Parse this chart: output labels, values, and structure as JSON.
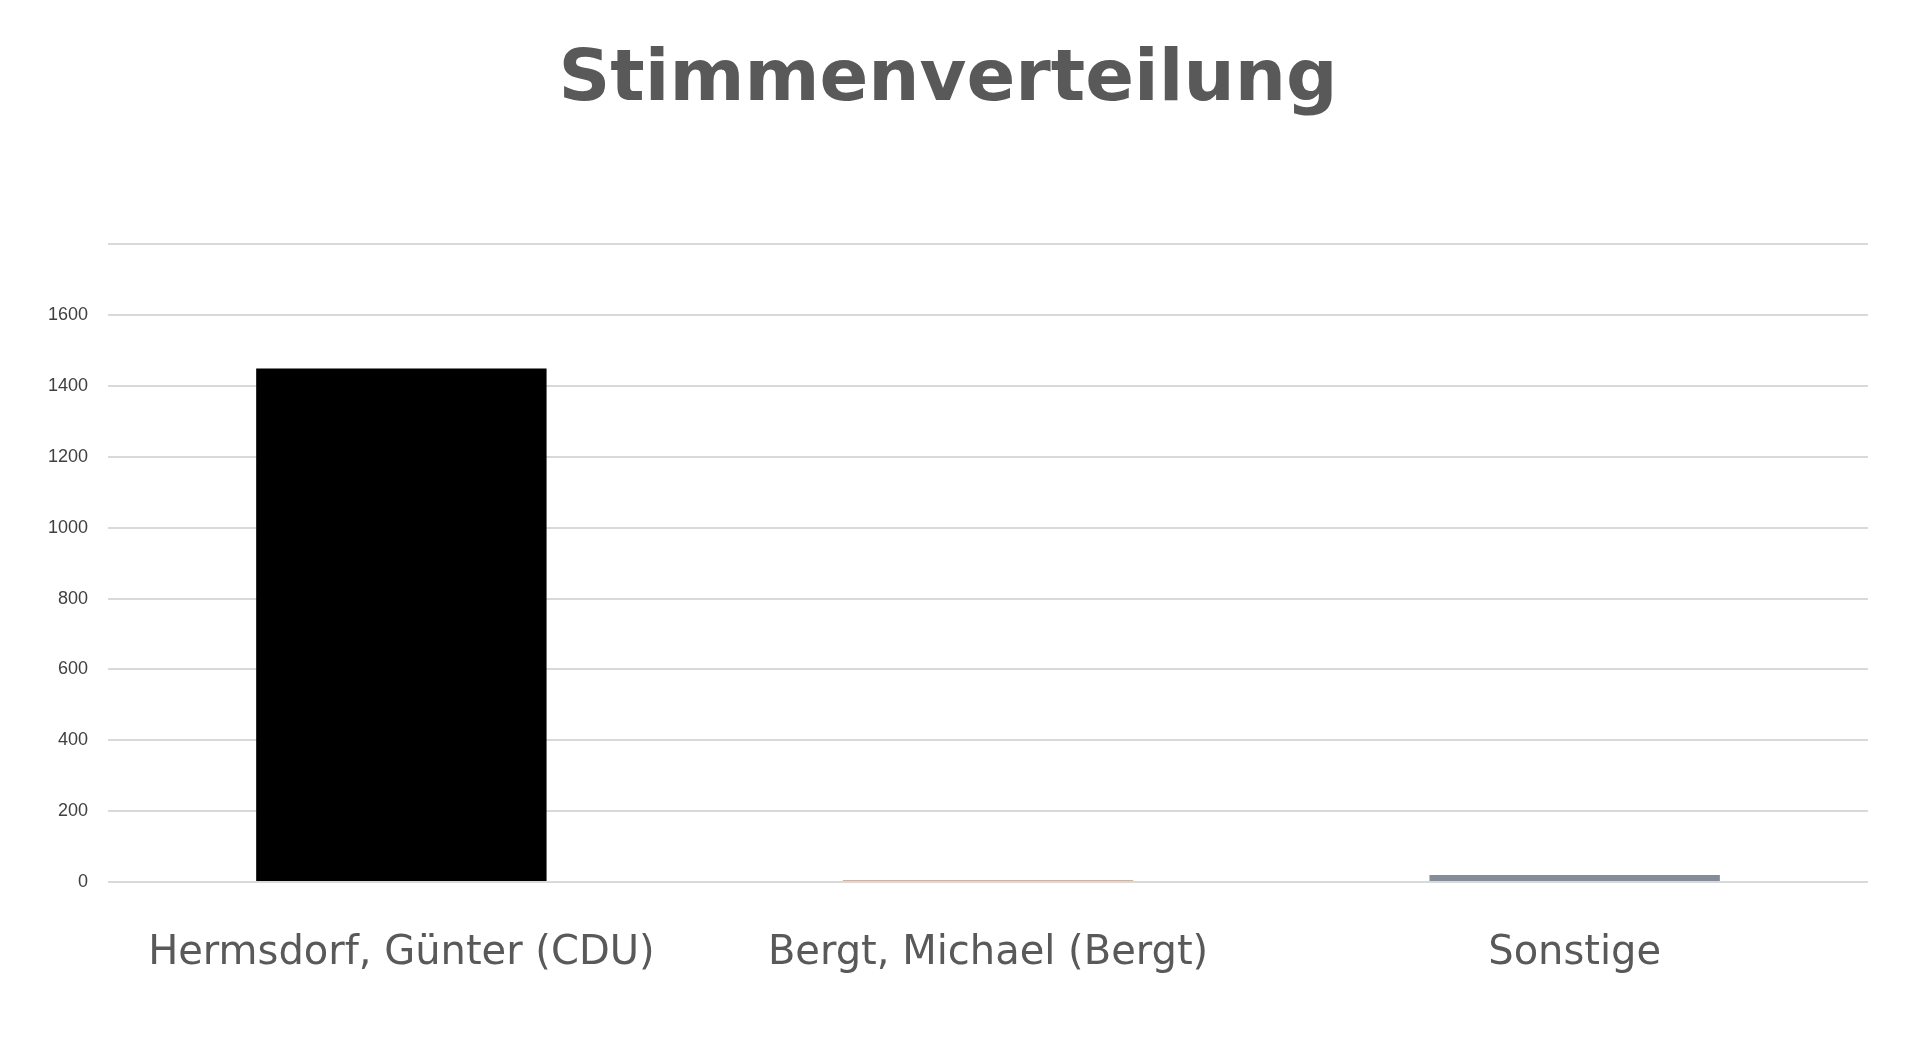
{
  "chart_data": {
    "type": "bar",
    "title": "Stimmenverteilung",
    "categories": [
      "Hermsdorf, Günter (CDU)",
      "Bergt, Michael (Bergt)",
      "Sonstige"
    ],
    "values": [
      1450,
      5,
      20
    ],
    "colors": [
      "#000000",
      "#bf9a80",
      "#848d98"
    ],
    "ylim": [
      0,
      1800
    ],
    "yticks": [
      0,
      200,
      400,
      600,
      800,
      1000,
      1200,
      1400,
      1600,
      {
        "value": 1800,
        "label": null
      }
    ],
    "grid": "y",
    "legend": false
  }
}
